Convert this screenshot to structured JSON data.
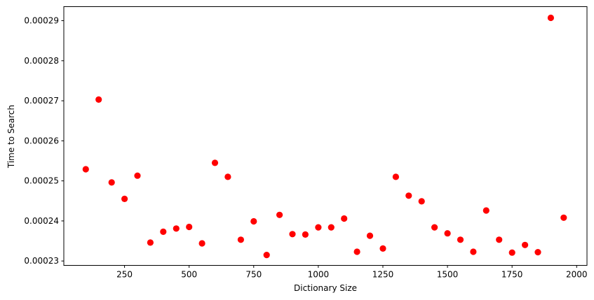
{
  "chart_data": {
    "type": "scatter",
    "xlabel": "Dictionary Size",
    "ylabel": "Time to Search",
    "xlim": [
      15,
      2040
    ],
    "ylim": [
      0.0002289,
      0.0002935
    ],
    "xticks": [
      250,
      500,
      750,
      1000,
      1250,
      1500,
      1750,
      2000
    ],
    "xtick_labels": [
      "250",
      "500",
      "750",
      "1000",
      "1250",
      "1500",
      "1750",
      "2000"
    ],
    "yticks": [
      0.00023,
      0.00024,
      0.00025,
      0.00026,
      0.00027,
      0.00028,
      0.00029
    ],
    "ytick_labels": [
      "0.00023",
      "0.00024",
      "0.00025",
      "0.00026",
      "0.00027",
      "0.00028",
      "0.00029"
    ],
    "marker_color": "#ff0000",
    "grid": false,
    "x": [
      100,
      150,
      200,
      250,
      300,
      350,
      400,
      450,
      500,
      550,
      600,
      650,
      700,
      750,
      800,
      850,
      900,
      950,
      1000,
      1050,
      1100,
      1150,
      1200,
      1250,
      1300,
      1350,
      1400,
      1450,
      1500,
      1550,
      1600,
      1650,
      1700,
      1750,
      1800,
      1850,
      1900,
      1950
    ],
    "y": [
      0.0002529,
      0.0002703,
      0.0002496,
      0.0002455,
      0.0002513,
      0.0002346,
      0.0002373,
      0.0002381,
      0.0002385,
      0.0002344,
      0.0002545,
      0.000251,
      0.0002353,
      0.0002399,
      0.0002315,
      0.0002415,
      0.0002367,
      0.0002366,
      0.0002384,
      0.0002384,
      0.0002406,
      0.0002323,
      0.0002363,
      0.0002331,
      0.000251,
      0.0002463,
      0.0002449,
      0.0002384,
      0.0002369,
      0.0002353,
      0.0002323,
      0.0002426,
      0.0002353,
      0.0002321,
      0.000234,
      0.0002322,
      0.0002907,
      0.0002408
    ]
  }
}
